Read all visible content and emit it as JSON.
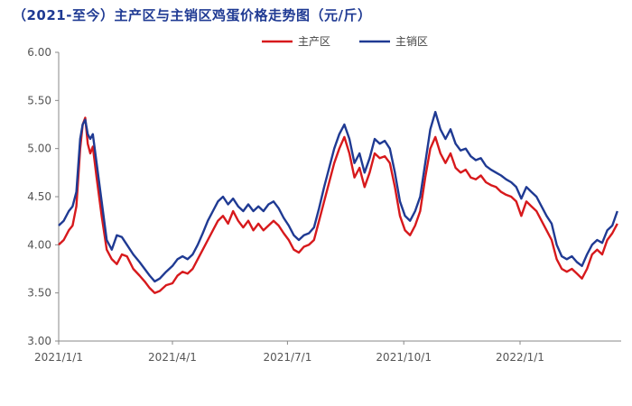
{
  "title": "（2021-至今）主产区与主销区鸡蛋价格走势图（元/斤）",
  "chart_data": {
    "type": "line",
    "title": "（2021-至今）主产区与主销区鸡蛋价格走势图（元/斤）",
    "xlabel": "",
    "ylabel": "",
    "ylim": [
      3.0,
      6.0
    ],
    "yticks": [
      "3.00",
      "3.50",
      "4.00",
      "4.50",
      "5.00",
      "5.50",
      "6.00"
    ],
    "xlim": [
      "2021-01-01",
      "2022-03-22"
    ],
    "xticks": [
      {
        "date": "2021-01-01",
        "label": "2021/1/1"
      },
      {
        "date": "2021-04-01",
        "label": "2021/4/1"
      },
      {
        "date": "2021-07-01",
        "label": "2021/7/1"
      },
      {
        "date": "2021-10-01",
        "label": "2021/10/1"
      },
      {
        "date": "2022-01-01",
        "label": "2022/1/1"
      }
    ],
    "grid": false,
    "legend": "top-center",
    "series": [
      {
        "name": "主产区",
        "color": "#d7191c",
        "points": [
          [
            "2021-01-01",
            4.0
          ],
          [
            "2021-01-05",
            4.05
          ],
          [
            "2021-01-09",
            4.15
          ],
          [
            "2021-01-12",
            4.2
          ],
          [
            "2021-01-15",
            4.4
          ],
          [
            "2021-01-18",
            5.0
          ],
          [
            "2021-01-20",
            5.25
          ],
          [
            "2021-01-22",
            5.32
          ],
          [
            "2021-01-24",
            5.05
          ],
          [
            "2021-01-26",
            4.95
          ],
          [
            "2021-01-28",
            5.02
          ],
          [
            "2021-01-31",
            4.7
          ],
          [
            "2021-02-04",
            4.3
          ],
          [
            "2021-02-08",
            3.95
          ],
          [
            "2021-02-12",
            3.85
          ],
          [
            "2021-02-16",
            3.8
          ],
          [
            "2021-02-20",
            3.9
          ],
          [
            "2021-02-24",
            3.88
          ],
          [
            "2021-03-01",
            3.75
          ],
          [
            "2021-03-06",
            3.68
          ],
          [
            "2021-03-10",
            3.62
          ],
          [
            "2021-03-14",
            3.55
          ],
          [
            "2021-03-18",
            3.5
          ],
          [
            "2021-03-22",
            3.52
          ],
          [
            "2021-03-27",
            3.58
          ],
          [
            "2021-04-01",
            3.6
          ],
          [
            "2021-04-05",
            3.68
          ],
          [
            "2021-04-09",
            3.72
          ],
          [
            "2021-04-13",
            3.7
          ],
          [
            "2021-04-17",
            3.75
          ],
          [
            "2021-04-21",
            3.85
          ],
          [
            "2021-04-25",
            3.95
          ],
          [
            "2021-04-29",
            4.05
          ],
          [
            "2021-05-03",
            4.15
          ],
          [
            "2021-05-07",
            4.25
          ],
          [
            "2021-05-11",
            4.3
          ],
          [
            "2021-05-15",
            4.22
          ],
          [
            "2021-05-19",
            4.35
          ],
          [
            "2021-05-23",
            4.25
          ],
          [
            "2021-05-27",
            4.18
          ],
          [
            "2021-05-31",
            4.25
          ],
          [
            "2021-06-04",
            4.15
          ],
          [
            "2021-06-08",
            4.22
          ],
          [
            "2021-06-12",
            4.15
          ],
          [
            "2021-06-16",
            4.2
          ],
          [
            "2021-06-20",
            4.25
          ],
          [
            "2021-06-24",
            4.2
          ],
          [
            "2021-06-28",
            4.12
          ],
          [
            "2021-07-02",
            4.05
          ],
          [
            "2021-07-06",
            3.95
          ],
          [
            "2021-07-10",
            3.92
          ],
          [
            "2021-07-14",
            3.98
          ],
          [
            "2021-07-18",
            4.0
          ],
          [
            "2021-07-22",
            4.05
          ],
          [
            "2021-07-26",
            4.25
          ],
          [
            "2021-07-30",
            4.45
          ],
          [
            "2021-08-03",
            4.65
          ],
          [
            "2021-08-07",
            4.85
          ],
          [
            "2021-08-11",
            5.0
          ],
          [
            "2021-08-15",
            5.12
          ],
          [
            "2021-08-19",
            4.95
          ],
          [
            "2021-08-23",
            4.7
          ],
          [
            "2021-08-27",
            4.8
          ],
          [
            "2021-08-31",
            4.6
          ],
          [
            "2021-09-04",
            4.75
          ],
          [
            "2021-09-08",
            4.95
          ],
          [
            "2021-09-12",
            4.9
          ],
          [
            "2021-09-16",
            4.92
          ],
          [
            "2021-09-20",
            4.85
          ],
          [
            "2021-09-24",
            4.6
          ],
          [
            "2021-09-28",
            4.3
          ],
          [
            "2021-10-02",
            4.15
          ],
          [
            "2021-10-06",
            4.1
          ],
          [
            "2021-10-10",
            4.2
          ],
          [
            "2021-10-14",
            4.35
          ],
          [
            "2021-10-18",
            4.7
          ],
          [
            "2021-10-22",
            5.0
          ],
          [
            "2021-10-26",
            5.12
          ],
          [
            "2021-10-30",
            4.95
          ],
          [
            "2021-11-03",
            4.85
          ],
          [
            "2021-11-07",
            4.95
          ],
          [
            "2021-11-11",
            4.8
          ],
          [
            "2021-11-15",
            4.75
          ],
          [
            "2021-11-19",
            4.78
          ],
          [
            "2021-11-23",
            4.7
          ],
          [
            "2021-11-27",
            4.68
          ],
          [
            "2021-12-01",
            4.72
          ],
          [
            "2021-12-05",
            4.65
          ],
          [
            "2021-12-09",
            4.62
          ],
          [
            "2021-12-13",
            4.6
          ],
          [
            "2021-12-17",
            4.55
          ],
          [
            "2021-12-21",
            4.52
          ],
          [
            "2021-12-25",
            4.5
          ],
          [
            "2021-12-29",
            4.45
          ],
          [
            "2022-01-02",
            4.3
          ],
          [
            "2022-01-06",
            4.45
          ],
          [
            "2022-01-10",
            4.4
          ],
          [
            "2022-01-14",
            4.35
          ],
          [
            "2022-01-18",
            4.25
          ],
          [
            "2022-01-22",
            4.15
          ],
          [
            "2022-01-26",
            4.05
          ],
          [
            "2022-01-30",
            3.85
          ],
          [
            "2022-02-03",
            3.75
          ],
          [
            "2022-02-07",
            3.72
          ],
          [
            "2022-02-11",
            3.75
          ],
          [
            "2022-02-15",
            3.7
          ],
          [
            "2022-02-19",
            3.65
          ],
          [
            "2022-02-23",
            3.75
          ],
          [
            "2022-02-27",
            3.9
          ],
          [
            "2022-03-03",
            3.95
          ],
          [
            "2022-03-07",
            3.9
          ],
          [
            "2022-03-11",
            4.05
          ],
          [
            "2022-03-15",
            4.12
          ],
          [
            "2022-03-19",
            4.22
          ]
        ]
      },
      {
        "name": "主销区",
        "color": "#1f3a93",
        "points": [
          [
            "2021-01-01",
            4.2
          ],
          [
            "2021-01-05",
            4.25
          ],
          [
            "2021-01-09",
            4.35
          ],
          [
            "2021-01-12",
            4.4
          ],
          [
            "2021-01-15",
            4.55
          ],
          [
            "2021-01-18",
            5.1
          ],
          [
            "2021-01-20",
            5.25
          ],
          [
            "2021-01-22",
            5.3
          ],
          [
            "2021-01-24",
            5.15
          ],
          [
            "2021-01-26",
            5.1
          ],
          [
            "2021-01-28",
            5.15
          ],
          [
            "2021-01-31",
            4.85
          ],
          [
            "2021-02-04",
            4.45
          ],
          [
            "2021-02-08",
            4.05
          ],
          [
            "2021-02-12",
            3.95
          ],
          [
            "2021-02-16",
            4.1
          ],
          [
            "2021-02-20",
            4.08
          ],
          [
            "2021-02-24",
            4.0
          ],
          [
            "2021-03-01",
            3.9
          ],
          [
            "2021-03-06",
            3.82
          ],
          [
            "2021-03-10",
            3.75
          ],
          [
            "2021-03-14",
            3.68
          ],
          [
            "2021-03-18",
            3.62
          ],
          [
            "2021-03-22",
            3.65
          ],
          [
            "2021-03-27",
            3.72
          ],
          [
            "2021-04-01",
            3.78
          ],
          [
            "2021-04-05",
            3.85
          ],
          [
            "2021-04-09",
            3.88
          ],
          [
            "2021-04-13",
            3.85
          ],
          [
            "2021-04-17",
            3.9
          ],
          [
            "2021-04-21",
            4.0
          ],
          [
            "2021-04-25",
            4.12
          ],
          [
            "2021-04-29",
            4.25
          ],
          [
            "2021-05-03",
            4.35
          ],
          [
            "2021-05-07",
            4.45
          ],
          [
            "2021-05-11",
            4.5
          ],
          [
            "2021-05-15",
            4.42
          ],
          [
            "2021-05-19",
            4.48
          ],
          [
            "2021-05-23",
            4.4
          ],
          [
            "2021-05-27",
            4.35
          ],
          [
            "2021-05-31",
            4.42
          ],
          [
            "2021-06-04",
            4.35
          ],
          [
            "2021-06-08",
            4.4
          ],
          [
            "2021-06-12",
            4.35
          ],
          [
            "2021-06-16",
            4.42
          ],
          [
            "2021-06-20",
            4.45
          ],
          [
            "2021-06-24",
            4.38
          ],
          [
            "2021-06-28",
            4.28
          ],
          [
            "2021-07-02",
            4.2
          ],
          [
            "2021-07-06",
            4.1
          ],
          [
            "2021-07-10",
            4.05
          ],
          [
            "2021-07-14",
            4.1
          ],
          [
            "2021-07-18",
            4.12
          ],
          [
            "2021-07-22",
            4.18
          ],
          [
            "2021-07-26",
            4.38
          ],
          [
            "2021-07-30",
            4.6
          ],
          [
            "2021-08-03",
            4.8
          ],
          [
            "2021-08-07",
            5.0
          ],
          [
            "2021-08-11",
            5.15
          ],
          [
            "2021-08-15",
            5.25
          ],
          [
            "2021-08-19",
            5.1
          ],
          [
            "2021-08-23",
            4.85
          ],
          [
            "2021-08-27",
            4.95
          ],
          [
            "2021-08-31",
            4.75
          ],
          [
            "2021-09-04",
            4.9
          ],
          [
            "2021-09-08",
            5.1
          ],
          [
            "2021-09-12",
            5.05
          ],
          [
            "2021-09-16",
            5.08
          ],
          [
            "2021-09-20",
            5.0
          ],
          [
            "2021-09-24",
            4.75
          ],
          [
            "2021-09-28",
            4.45
          ],
          [
            "2021-10-02",
            4.3
          ],
          [
            "2021-10-06",
            4.25
          ],
          [
            "2021-10-10",
            4.35
          ],
          [
            "2021-10-14",
            4.5
          ],
          [
            "2021-10-18",
            4.85
          ],
          [
            "2021-10-22",
            5.2
          ],
          [
            "2021-10-26",
            5.38
          ],
          [
            "2021-10-30",
            5.2
          ],
          [
            "2021-11-03",
            5.1
          ],
          [
            "2021-11-07",
            5.2
          ],
          [
            "2021-11-11",
            5.05
          ],
          [
            "2021-11-15",
            4.98
          ],
          [
            "2021-11-19",
            5.0
          ],
          [
            "2021-11-23",
            4.92
          ],
          [
            "2021-11-27",
            4.88
          ],
          [
            "2021-12-01",
            4.9
          ],
          [
            "2021-12-05",
            4.82
          ],
          [
            "2021-12-09",
            4.78
          ],
          [
            "2021-12-13",
            4.75
          ],
          [
            "2021-12-17",
            4.72
          ],
          [
            "2021-12-21",
            4.68
          ],
          [
            "2021-12-25",
            4.65
          ],
          [
            "2021-12-29",
            4.6
          ],
          [
            "2022-01-02",
            4.48
          ],
          [
            "2022-01-06",
            4.6
          ],
          [
            "2022-01-10",
            4.55
          ],
          [
            "2022-01-14",
            4.5
          ],
          [
            "2022-01-18",
            4.4
          ],
          [
            "2022-01-22",
            4.3
          ],
          [
            "2022-01-26",
            4.22
          ],
          [
            "2022-01-30",
            4.0
          ],
          [
            "2022-02-03",
            3.88
          ],
          [
            "2022-02-07",
            3.85
          ],
          [
            "2022-02-11",
            3.88
          ],
          [
            "2022-02-15",
            3.82
          ],
          [
            "2022-02-19",
            3.78
          ],
          [
            "2022-02-23",
            3.9
          ],
          [
            "2022-02-27",
            4.0
          ],
          [
            "2022-03-03",
            4.05
          ],
          [
            "2022-03-07",
            4.02
          ],
          [
            "2022-03-11",
            4.15
          ],
          [
            "2022-03-15",
            4.2
          ],
          [
            "2022-03-19",
            4.35
          ]
        ]
      }
    ]
  }
}
